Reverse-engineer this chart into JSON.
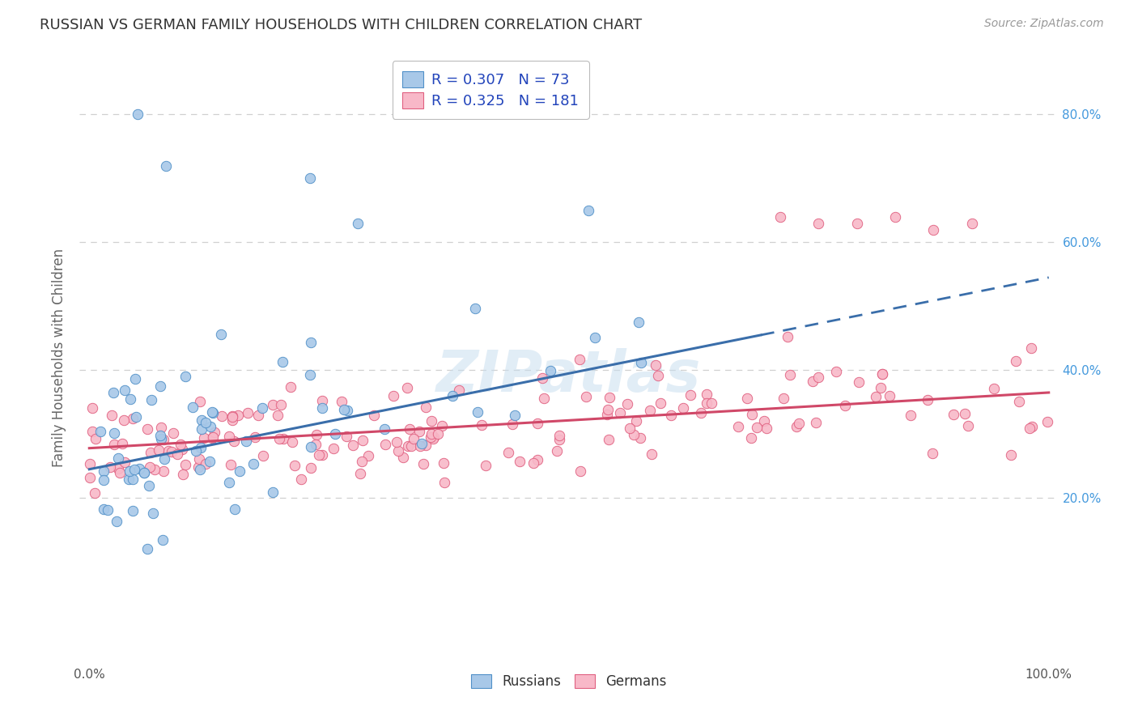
{
  "title": "RUSSIAN VS GERMAN FAMILY HOUSEHOLDS WITH CHILDREN CORRELATION CHART",
  "source": "Source: ZipAtlas.com",
  "ylabel": "Family Households with Children",
  "watermark": "ZIPatlas",
  "background_color": "#ffffff",
  "plot_bg_color": "#ffffff",
  "grid_color": "#d0d0d0",
  "russian_fill": "#a8c8e8",
  "russian_edge": "#5090c8",
  "german_fill": "#f8b8c8",
  "german_edge": "#e06080",
  "russian_line_color": "#3a6eaa",
  "german_line_color": "#d04868",
  "russian_R": 0.307,
  "russian_N": 73,
  "german_R": 0.325,
  "german_N": 181,
  "xlim": [
    -0.01,
    1.01
  ],
  "ylim": [
    -0.06,
    0.9
  ],
  "yticks": [
    0.2,
    0.4,
    0.6,
    0.8
  ],
  "xticks": [
    0.0,
    1.0
  ],
  "xtick_labels": [
    "0.0%",
    "100.0%"
  ],
  "legend_color": "#2244bb",
  "right_axis_color": "#4499dd",
  "title_fontsize": 13,
  "source_fontsize": 10,
  "tick_fontsize": 11,
  "ylabel_fontsize": 12,
  "legend_fontsize": 13,
  "watermark_fontsize": 52,
  "russian_line_x0": 0.0,
  "russian_line_y0": 0.245,
  "russian_line_x1": 0.7,
  "russian_line_y1": 0.455,
  "russian_line_solid_end": 0.7,
  "russian_line_dash_start": 0.7,
  "russian_line_dash_end": 1.0,
  "german_line_x0": 0.0,
  "german_line_y0": 0.278,
  "german_line_x1": 1.0,
  "german_line_y1": 0.365
}
